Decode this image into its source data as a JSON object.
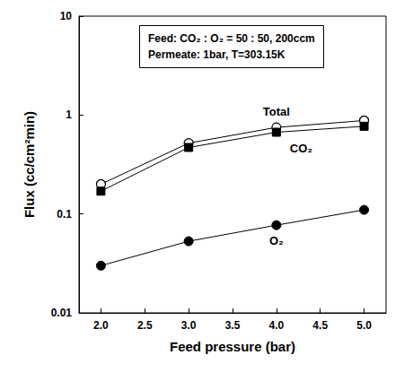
{
  "chart_data": {
    "type": "line",
    "x_label": "Feed pressure (bar)",
    "y_label": "Flux (cc/cm²min)",
    "annotation": [
      "Feed: CO₂ : O₂ = 50 : 50, 200ccm",
      "Permeate: 1bar, T=303.15K"
    ],
    "x": [
      2.0,
      3.0,
      4.0,
      5.0
    ],
    "series": [
      {
        "name": "Total",
        "color": "#000000",
        "marker": "circle_open",
        "values": [
          0.2,
          0.52,
          0.75,
          0.88
        ]
      },
      {
        "name": "CO₂",
        "color": "#000000",
        "marker": "square",
        "values": [
          0.17,
          0.47,
          0.67,
          0.77
        ]
      },
      {
        "name": "O₂",
        "color": "#000000",
        "marker": "circle",
        "values": [
          0.03,
          0.053,
          0.077,
          0.11
        ]
      }
    ],
    "xlim": [
      1.75,
      5.25
    ],
    "xticks": [
      {
        "value": 2,
        "label": "2.0"
      },
      {
        "value": 2.5,
        "label": "2.5"
      },
      {
        "value": 3,
        "label": "3.0"
      },
      {
        "value": 3.5,
        "label": "3.5"
      },
      {
        "value": 4,
        "label": "4.0"
      },
      {
        "value": 4.5,
        "label": "4.5"
      },
      {
        "value": 5,
        "label": "5.0"
      }
    ],
    "ylim": [
      0.01,
      10
    ],
    "yticks": [
      0.01,
      0.1,
      1,
      10
    ],
    "log": "y",
    "grid": false
  }
}
